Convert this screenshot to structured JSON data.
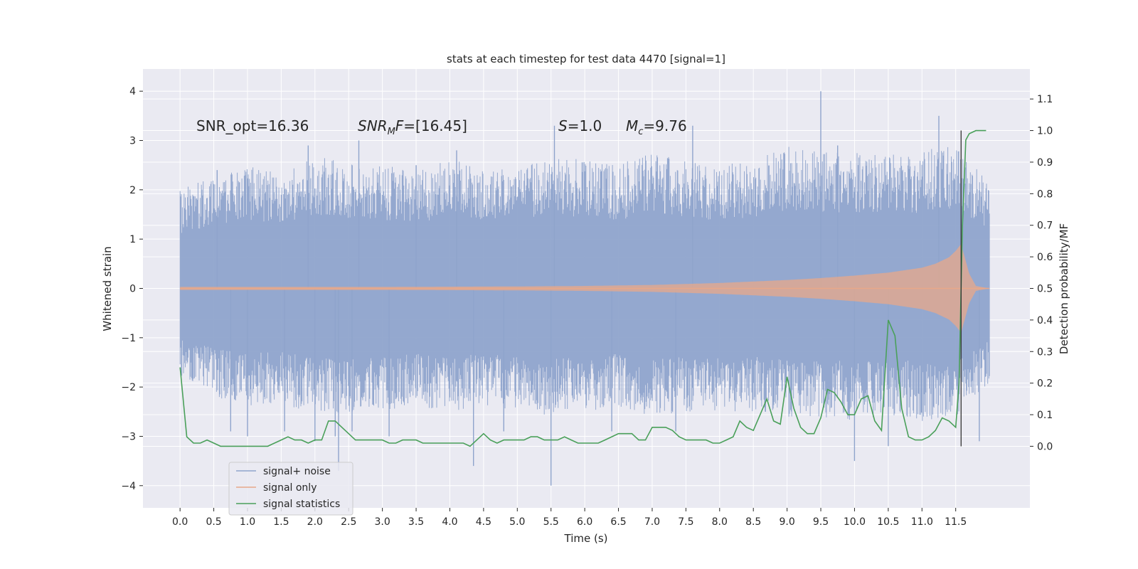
{
  "chart_data": {
    "type": "line",
    "title": "stats at each timestep for test data 4470 [signal=1]",
    "xlabel": "Time (s)",
    "ylabel": "Whitened strain",
    "y2label": "Detection probability/MF",
    "xlim": [
      -0.55,
      12.6
    ],
    "ylim": [
      -4.45,
      4.45
    ],
    "y2lim": [
      -0.195,
      1.195
    ],
    "xticks": [
      0.0,
      0.5,
      1.0,
      1.5,
      2.0,
      2.5,
      3.0,
      3.5,
      4.0,
      4.5,
      5.0,
      5.5,
      6.0,
      6.5,
      7.0,
      7.5,
      8.0,
      8.5,
      9.0,
      9.5,
      10.0,
      10.5,
      11.0,
      11.5
    ],
    "xtick_labels": [
      "0.0",
      "0.5",
      "1.0",
      "1.5",
      "2.0",
      "2.5",
      "3.0",
      "3.5",
      "4.0",
      "4.5",
      "5.0",
      "5.5",
      "6.0",
      "6.5",
      "7.0",
      "7.5",
      "8.0",
      "8.5",
      "9.0",
      "9.5",
      "10.0",
      "10.5",
      "11.0",
      "11.5"
    ],
    "yticks": [
      4,
      3,
      2,
      1,
      0,
      -1,
      -2,
      -3,
      -4
    ],
    "ytick_labels": [
      "4",
      "3",
      "2",
      "1",
      "0",
      "−1",
      "−2",
      "−3",
      "−4"
    ],
    "y2ticks": [
      1.1,
      1.0,
      0.9,
      0.8,
      0.7,
      0.6,
      0.5,
      0.4,
      0.3,
      0.2,
      0.1,
      0.0
    ],
    "y2tick_labels": [
      "1.1",
      "1.0",
      "0.9",
      "0.8",
      "0.7",
      "0.6",
      "0.5",
      "0.4",
      "0.3",
      "0.2",
      "0.1",
      "0.0"
    ],
    "grid": true,
    "legend_position": "lower-left",
    "annotations": {
      "snr_opt": "SNR_opt=16.36",
      "snr_mf_main": "SNR",
      "snr_mf_sub": "M",
      "snr_mf_tail": "F",
      "snr_mf_value": "=[16.45]",
      "s_sym": "S",
      "s_value": "=1.0",
      "mc_sym": "M",
      "mc_sub": "c",
      "mc_value": "=9.76"
    },
    "merger_time": 11.58,
    "series": [
      {
        "name": "signal+ noise",
        "axis": "left",
        "color": "#8fa4cc",
        "t_range": [
          0.0,
          12.0
        ],
        "envelope": {
          "t": [
            0,
            0.5,
            1,
            1.5,
            2,
            2.5,
            3,
            3.5,
            4,
            4.5,
            5,
            5.5,
            6,
            6.5,
            7,
            7.5,
            8,
            8.5,
            9,
            9.5,
            10,
            10.5,
            11,
            11.5,
            12
          ],
          "upper": [
            2.0,
            2.3,
            2.5,
            2.4,
            2.7,
            2.6,
            2.5,
            2.4,
            2.6,
            2.5,
            2.4,
            2.7,
            2.6,
            2.5,
            2.8,
            2.6,
            2.5,
            2.6,
            2.9,
            2.8,
            2.8,
            2.7,
            2.8,
            2.9,
            2.2
          ],
          "lower": [
            -1.8,
            -2.2,
            -2.4,
            -2.3,
            -2.6,
            -2.5,
            -2.5,
            -2.4,
            -2.5,
            -2.4,
            -2.5,
            -2.6,
            -2.5,
            -2.4,
            -2.6,
            -2.5,
            -2.5,
            -2.5,
            -2.6,
            -2.6,
            -2.7,
            -2.6,
            -2.7,
            -2.6,
            -1.9
          ]
        },
        "spikes": [
          [
            0.55,
            2.4
          ],
          [
            0.75,
            -2.9
          ],
          [
            1.0,
            -3.0
          ],
          [
            1.55,
            -2.9
          ],
          [
            1.9,
            2.9
          ],
          [
            2.0,
            -3.1
          ],
          [
            2.3,
            -3.0
          ],
          [
            2.35,
            -3.7
          ],
          [
            2.55,
            -2.9
          ],
          [
            2.65,
            3.0
          ],
          [
            3.1,
            -3.0
          ],
          [
            3.5,
            2.5
          ],
          [
            4.1,
            2.8
          ],
          [
            4.35,
            -3.6
          ],
          [
            4.8,
            -2.9
          ],
          [
            5.5,
            -4.0
          ],
          [
            5.55,
            3.3
          ],
          [
            6.4,
            -2.9
          ],
          [
            7.35,
            -2.9
          ],
          [
            7.6,
            3.3
          ],
          [
            9.5,
            4.0
          ],
          [
            9.75,
            2.9
          ],
          [
            10.0,
            -3.5
          ],
          [
            10.5,
            -3.2
          ],
          [
            11.25,
            3.5
          ],
          [
            11.85,
            -3.1
          ]
        ]
      },
      {
        "name": "signal only",
        "axis": "left",
        "color": "#e8a88a",
        "t_range": [
          0.0,
          12.0
        ],
        "envelope": {
          "t": [
            0,
            1,
            2,
            3,
            4,
            5,
            6,
            6.5,
            7,
            7.5,
            8,
            8.5,
            9,
            9.5,
            10,
            10.5,
            11,
            11.2,
            11.4,
            11.5,
            11.58,
            11.62,
            11.7,
            11.8,
            12
          ],
          "amplitude": [
            0.03,
            0.03,
            0.03,
            0.03,
            0.035,
            0.04,
            0.05,
            0.06,
            0.07,
            0.09,
            0.11,
            0.14,
            0.17,
            0.21,
            0.26,
            0.32,
            0.42,
            0.5,
            0.63,
            0.76,
            0.9,
            0.7,
            0.3,
            0.05,
            0.0
          ]
        }
      },
      {
        "name": "signal statistics",
        "axis": "right",
        "color": "#4aa05a",
        "x": [
          0.0,
          0.1,
          0.2,
          0.3,
          0.4,
          0.5,
          0.6,
          0.7,
          0.8,
          0.9,
          1.0,
          1.1,
          1.2,
          1.3,
          1.4,
          1.5,
          1.6,
          1.7,
          1.8,
          1.9,
          2.0,
          2.1,
          2.2,
          2.3,
          2.4,
          2.5,
          2.6,
          2.7,
          2.8,
          2.9,
          3.0,
          3.1,
          3.2,
          3.3,
          3.4,
          3.5,
          3.6,
          3.7,
          3.8,
          3.9,
          4.0,
          4.1,
          4.2,
          4.3,
          4.4,
          4.5,
          4.6,
          4.7,
          4.8,
          4.9,
          5.0,
          5.1,
          5.2,
          5.3,
          5.4,
          5.5,
          5.6,
          5.7,
          5.8,
          5.9,
          6.0,
          6.1,
          6.2,
          6.3,
          6.4,
          6.5,
          6.6,
          6.7,
          6.8,
          6.9,
          7.0,
          7.1,
          7.2,
          7.3,
          7.4,
          7.5,
          7.6,
          7.7,
          7.8,
          7.9,
          8.0,
          8.1,
          8.2,
          8.3,
          8.4,
          8.5,
          8.6,
          8.7,
          8.8,
          8.9,
          9.0,
          9.1,
          9.2,
          9.3,
          9.4,
          9.5,
          9.6,
          9.7,
          9.8,
          9.9,
          10.0,
          10.1,
          10.2,
          10.3,
          10.4,
          10.5,
          10.6,
          10.7,
          10.8,
          10.9,
          11.0,
          11.1,
          11.2,
          11.3,
          11.4,
          11.5,
          11.55,
          11.6,
          11.65,
          11.7,
          11.8,
          11.9,
          11.95
        ],
        "values": [
          0.25,
          0.03,
          0.01,
          0.01,
          0.02,
          0.01,
          0.0,
          0.0,
          0.0,
          0.0,
          0.0,
          0.0,
          0.0,
          0.0,
          0.01,
          0.02,
          0.03,
          0.02,
          0.02,
          0.01,
          0.02,
          0.02,
          0.08,
          0.08,
          0.06,
          0.04,
          0.02,
          0.02,
          0.02,
          0.02,
          0.02,
          0.01,
          0.01,
          0.02,
          0.02,
          0.02,
          0.01,
          0.01,
          0.01,
          0.01,
          0.01,
          0.01,
          0.01,
          0.0,
          0.02,
          0.04,
          0.02,
          0.01,
          0.02,
          0.02,
          0.02,
          0.02,
          0.03,
          0.03,
          0.02,
          0.02,
          0.02,
          0.03,
          0.02,
          0.01,
          0.01,
          0.01,
          0.01,
          0.02,
          0.03,
          0.04,
          0.04,
          0.04,
          0.02,
          0.02,
          0.06,
          0.06,
          0.06,
          0.05,
          0.03,
          0.02,
          0.02,
          0.02,
          0.02,
          0.01,
          0.01,
          0.02,
          0.03,
          0.08,
          0.06,
          0.05,
          0.1,
          0.15,
          0.08,
          0.07,
          0.22,
          0.12,
          0.06,
          0.04,
          0.04,
          0.09,
          0.18,
          0.17,
          0.14,
          0.1,
          0.1,
          0.15,
          0.16,
          0.08,
          0.05,
          0.4,
          0.35,
          0.12,
          0.03,
          0.02,
          0.02,
          0.03,
          0.05,
          0.09,
          0.08,
          0.06,
          0.2,
          0.7,
          0.97,
          0.99,
          1.0,
          1.0,
          1.0
        ]
      }
    ]
  }
}
